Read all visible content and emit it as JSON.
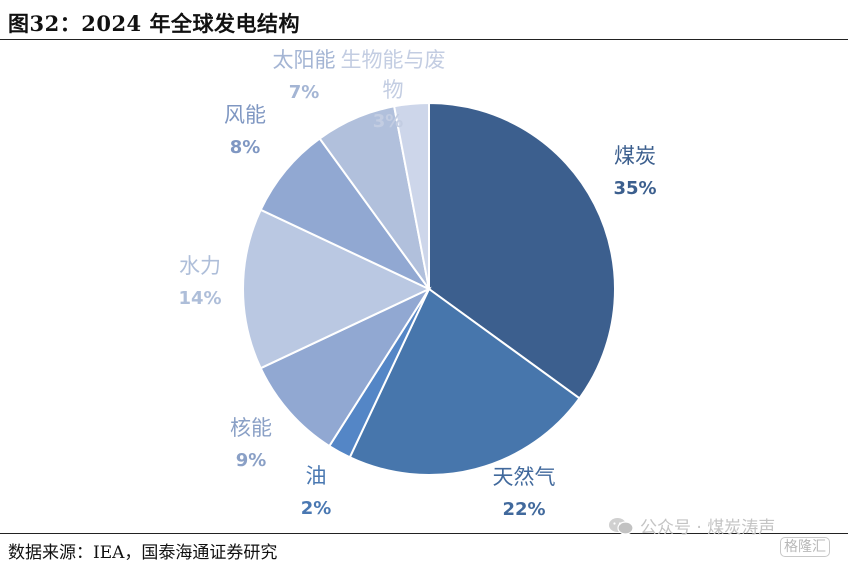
{
  "figure": {
    "title": "图32：2024 年全球发电结构",
    "source": "数据来源：IEA，国泰海通证券研究"
  },
  "watermark": {
    "text": "公众号 · 煤炭涛声",
    "icon": "wechat-icon"
  },
  "brand": {
    "text": "格隆汇"
  },
  "chart_data": {
    "type": "pie",
    "legend": "none",
    "slices": [
      {
        "label": "煤炭",
        "value": 35,
        "display": "35%",
        "color": "#3c5f8e",
        "label_color": "#3c5f8e"
      },
      {
        "label": "天然气",
        "value": 22,
        "display": "22%",
        "color": "#4776ac",
        "label_color": "#41699c"
      },
      {
        "label": "油",
        "value": 2,
        "display": "2%",
        "color": "#5486c6",
        "label_color": "#4a78b2"
      },
      {
        "label": "核能",
        "value": 9,
        "display": "9%",
        "color": "#91a8d2",
        "label_color": "#8aa0c6"
      },
      {
        "label": "水力",
        "value": 14,
        "display": "14%",
        "color": "#bac8e2",
        "label_color": "#aebed9"
      },
      {
        "label": "风能",
        "value": 8,
        "display": "8%",
        "color": "#91a8d2",
        "label_color": "#7f97c2"
      },
      {
        "label": "太阳能",
        "value": 7,
        "display": "7%",
        "color": "#b1c0dc",
        "label_color": "#a4b5d4"
      },
      {
        "label": "生物能与废物",
        "value": 3,
        "display": "3%",
        "color": "#cdd6ea",
        "label_color": "#c3cde2"
      }
    ]
  }
}
